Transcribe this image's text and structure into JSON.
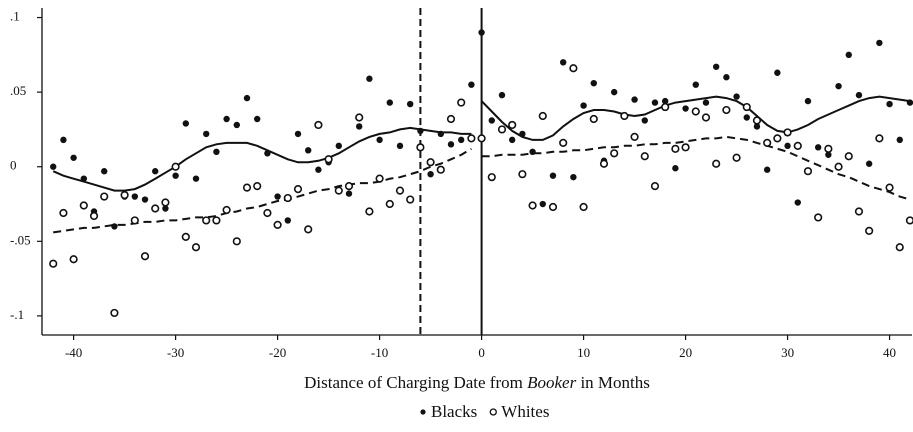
{
  "chart_data": {
    "type": "scatter",
    "x_label_parts": [
      "Distance of Charging Date from ",
      "Booker",
      " in Months"
    ],
    "x": [
      -42,
      -41,
      -40,
      -39,
      -38,
      -37,
      -36,
      -35,
      -34,
      -33,
      -32,
      -31,
      -30,
      -29,
      -28,
      -27,
      -26,
      -25,
      -24,
      -23,
      -22,
      -21,
      -20,
      -19,
      -18,
      -17,
      -16,
      -15,
      -14,
      -13,
      -12,
      -11,
      -10,
      -9,
      -8,
      -7,
      -6,
      -5,
      -4,
      -3,
      -2,
      -1,
      0,
      1,
      2,
      3,
      4,
      5,
      6,
      7,
      8,
      9,
      10,
      11,
      12,
      13,
      14,
      15,
      16,
      17,
      18,
      19,
      20,
      21,
      22,
      23,
      24,
      25,
      26,
      27,
      28,
      29,
      30,
      31,
      32,
      33,
      34,
      35,
      36,
      37,
      38,
      39,
      40,
      41,
      42
    ],
    "series": [
      {
        "name": "Blacks",
        "marker": "filled",
        "color": "#111111",
        "fit_style": "solid",
        "values": [
          0.0,
          0.018,
          0.006,
          -0.008,
          -0.03,
          -0.003,
          -0.04,
          -0.02,
          -0.02,
          -0.022,
          -0.003,
          -0.028,
          -0.006,
          0.029,
          -0.008,
          0.022,
          0.01,
          0.032,
          0.028,
          0.046,
          0.032,
          0.009,
          -0.02,
          -0.036,
          0.022,
          0.011,
          -0.002,
          0.003,
          0.014,
          -0.018,
          0.027,
          0.059,
          0.018,
          0.043,
          0.014,
          0.042,
          0.024,
          -0.005,
          0.022,
          0.015,
          0.018,
          0.055,
          0.09,
          0.031,
          0.048,
          0.018,
          0.022,
          0.01,
          -0.025,
          -0.006,
          0.07,
          -0.007,
          0.041,
          0.056,
          0.004,
          0.05,
          0.034,
          0.045,
          0.031,
          0.043,
          0.044,
          -0.001,
          0.039,
          0.055,
          0.043,
          0.067,
          0.06,
          0.047,
          0.033,
          0.027,
          -0.002,
          0.063,
          0.014,
          -0.024,
          0.044,
          0.013,
          0.008,
          0.054,
          0.075,
          0.048,
          0.002,
          0.083,
          0.042,
          0.018,
          0.043
        ],
        "fit": [
          -0.003,
          -0.006,
          -0.008,
          -0.01,
          -0.012,
          -0.014,
          -0.016,
          -0.016,
          -0.015,
          -0.012,
          -0.008,
          -0.004,
          0.0,
          0.005,
          0.009,
          0.013,
          0.015,
          0.016,
          0.016,
          0.016,
          0.014,
          0.011,
          0.008,
          0.005,
          0.003,
          0.003,
          0.004,
          0.006,
          0.009,
          0.013,
          0.017,
          0.02,
          0.022,
          0.023,
          0.025,
          0.026,
          0.025,
          0.024,
          0.023,
          0.023,
          0.022,
          0.022,
          0.044,
          0.037,
          0.03,
          0.024,
          0.02,
          0.018,
          0.018,
          0.021,
          0.027,
          0.032,
          0.036,
          0.038,
          0.038,
          0.037,
          0.035,
          0.034,
          0.035,
          0.038,
          0.041,
          0.043,
          0.044,
          0.045,
          0.046,
          0.047,
          0.046,
          0.044,
          0.04,
          0.034,
          0.028,
          0.024,
          0.023,
          0.025,
          0.028,
          0.032,
          0.035,
          0.038,
          0.041,
          0.044,
          0.046,
          0.047,
          0.046,
          0.045,
          0.044
        ]
      },
      {
        "name": "Whites",
        "marker": "hollow",
        "color": "#111111",
        "fit_style": "dashed",
        "values": [
          -0.065,
          -0.031,
          -0.062,
          -0.026,
          -0.033,
          -0.02,
          -0.098,
          -0.019,
          -0.036,
          -0.06,
          -0.028,
          -0.024,
          0.0,
          -0.047,
          -0.054,
          -0.036,
          -0.036,
          -0.029,
          -0.05,
          -0.014,
          -0.013,
          -0.031,
          -0.039,
          -0.021,
          -0.015,
          -0.042,
          0.028,
          0.005,
          -0.016,
          -0.013,
          0.033,
          -0.03,
          -0.008,
          -0.025,
          -0.016,
          -0.022,
          0.013,
          0.003,
          -0.002,
          0.032,
          0.043,
          0.019,
          0.019,
          -0.007,
          0.025,
          0.028,
          -0.005,
          -0.026,
          0.034,
          -0.027,
          0.016,
          0.066,
          -0.027,
          0.032,
          0.002,
          0.009,
          0.034,
          0.02,
          0.007,
          -0.013,
          0.04,
          0.012,
          0.013,
          0.037,
          0.033,
          0.002,
          0.038,
          0.006,
          0.04,
          0.031,
          0.016,
          0.019,
          0.023,
          0.014,
          -0.003,
          -0.034,
          0.012,
          0.0,
          0.007,
          -0.03,
          -0.043,
          0.019,
          -0.014,
          -0.054,
          -0.036
        ],
        "fit": [
          -0.044,
          -0.043,
          -0.042,
          -0.041,
          -0.041,
          -0.04,
          -0.039,
          -0.039,
          -0.038,
          -0.037,
          -0.037,
          -0.036,
          -0.036,
          -0.035,
          -0.034,
          -0.034,
          -0.033,
          -0.031,
          -0.03,
          -0.028,
          -0.027,
          -0.025,
          -0.023,
          -0.022,
          -0.02,
          -0.018,
          -0.016,
          -0.015,
          -0.013,
          -0.012,
          -0.011,
          -0.011,
          -0.01,
          -0.008,
          -0.007,
          -0.005,
          -0.003,
          0.0,
          0.002,
          0.005,
          0.008,
          0.012,
          0.007,
          0.007,
          0.008,
          0.008,
          0.008,
          0.009,
          0.009,
          0.01,
          0.01,
          0.011,
          0.011,
          0.012,
          0.013,
          0.013,
          0.014,
          0.014,
          0.015,
          0.015,
          0.016,
          0.016,
          0.017,
          0.018,
          0.019,
          0.019,
          0.02,
          0.019,
          0.018,
          0.016,
          0.014,
          0.012,
          0.01,
          0.007,
          0.004,
          0.001,
          -0.002,
          -0.005,
          -0.007,
          -0.01,
          -0.013,
          -0.015,
          -0.017,
          -0.02,
          -0.022
        ]
      }
    ],
    "vlines": [
      {
        "value": -6,
        "style": "dashed"
      },
      {
        "value": 0,
        "style": "solid"
      }
    ],
    "xlim": [
      -43.1,
      42.2
    ],
    "ylim": [
      -0.1128,
      0.1064
    ],
    "xticks": [
      -40,
      -30,
      -20,
      -10,
      0,
      10,
      20,
      30,
      40
    ],
    "yticks": [
      {
        "value": -0.1,
        "label": "-.1"
      },
      {
        "value": -0.05,
        "label": "-.05"
      },
      0,
      {
        "value": 0.05,
        "label": ".05"
      },
      {
        "value": 0.1,
        "label": ".1"
      }
    ]
  }
}
